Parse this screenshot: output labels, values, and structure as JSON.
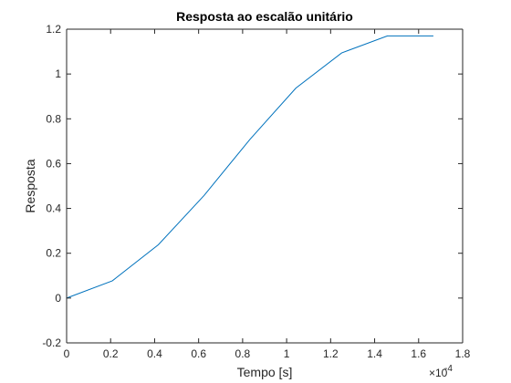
{
  "chart_data": {
    "type": "line",
    "title": "Resposta ao escalão unitário",
    "xlabel": "Tempo [s]",
    "ylabel": "Resposta",
    "x_multiplier_base": "×10",
    "x_multiplier_exponent": "-4",
    "x_scale": 0.0001,
    "xlim": [
      0,
      1.8
    ],
    "ylim": [
      -0.2,
      1.2
    ],
    "x_ticks": [
      "0",
      "0.2",
      "0.4",
      "0.6",
      "0.8",
      "1",
      "1.2",
      "1.4",
      "1.6",
      "1.8"
    ],
    "y_ticks": [
      "-0.2",
      "0",
      "0.2",
      "0.4",
      "0.6",
      "0.8",
      "1",
      "1.2"
    ],
    "grid": false,
    "series": [
      {
        "color": "#0072BD",
        "x": [
          0,
          0.208,
          0.417,
          0.625,
          0.833,
          1.042,
          1.25,
          1.458,
          1.667
        ],
        "y": [
          0,
          0.077,
          0.238,
          0.458,
          0.708,
          0.937,
          1.094,
          1.17,
          1.17
        ]
      }
    ]
  }
}
